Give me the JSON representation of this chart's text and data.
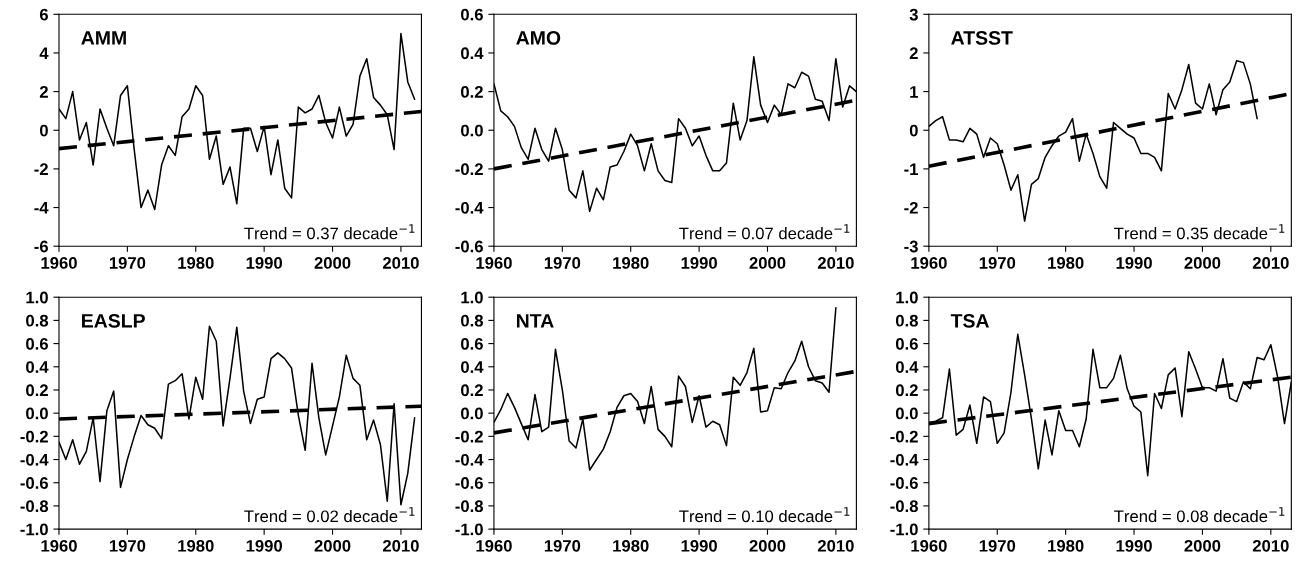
{
  "chart_data": [
    {
      "type": "line",
      "title": "AMM",
      "xlim": [
        1960,
        2013
      ],
      "xticks": [
        1960,
        1970,
        1980,
        1990,
        2000,
        2010
      ],
      "ylim": [
        -6,
        6
      ],
      "yticks": [
        6,
        4,
        2,
        0,
        {
          "value": -2,
          "label": "-2"
        },
        {
          "value": -4,
          "label": "-4"
        },
        {
          "value": -6,
          "label": "-6"
        }
      ],
      "annotations": [
        "Trend = 0.37 decade$^{−1}$"
      ],
      "series": [
        {
          "color": "#000000",
          "x": [
            1960,
            1961,
            1962,
            1963,
            1964,
            1965,
            1966,
            1967,
            1968,
            1969,
            1970,
            1971,
            1972,
            1973,
            1974,
            1975,
            1976,
            1977,
            1978,
            1979,
            1980,
            1981,
            1982,
            1983,
            1984,
            1985,
            1986,
            1987,
            1988,
            1989,
            1990,
            1991,
            1992,
            1993,
            1994,
            1995,
            1996,
            1997,
            1998,
            1999,
            2000,
            2001,
            2002,
            2003,
            2004,
            2005,
            2006,
            2007,
            2008,
            2009,
            2010,
            2011,
            2012
          ],
          "values": [
            1.1,
            0.6,
            2.0,
            -0.5,
            0.4,
            -1.8,
            1.1,
            0.1,
            -0.8,
            1.8,
            2.3,
            -1.0,
            -4.0,
            -3.1,
            -4.1,
            -1.8,
            -0.8,
            -1.3,
            0.7,
            1.1,
            2.3,
            1.8,
            -1.5,
            -0.3,
            -2.8,
            -1.9,
            -3.8,
            0.1,
            0.1,
            -1.1,
            0.2,
            -2.3,
            -0.5,
            -3.0,
            -3.5,
            1.2,
            0.9,
            1.1,
            1.8,
            0.4,
            -0.4,
            1.2,
            -0.3,
            0.3,
            2.8,
            3.7,
            1.7,
            1.3,
            0.8,
            -1.0,
            5.0,
            2.5,
            1.6
          ]
        },
        {
          "color": "#000000",
          "line_style": "dashed",
          "x": [
            1960,
            2013
          ],
          "values": [
            -0.95,
            0.97
          ]
        }
      ]
    },
    {
      "type": "line",
      "title": "AMO",
      "xlim": [
        1960,
        2013
      ],
      "xticks": [
        1960,
        1970,
        1980,
        1990,
        2000,
        2010
      ],
      "ylim": [
        -0.6,
        0.6
      ],
      "yticks": [
        0.6,
        0.4,
        0.2,
        {
          "value": 0,
          "label": "0.0"
        },
        {
          "value": -0.2,
          "label": "-0.2"
        },
        {
          "value": -0.4,
          "label": "-0.4"
        },
        {
          "value": -0.6,
          "label": "-0.6"
        }
      ],
      "annotations": [
        "Trend = 0.07 decade$^{−1}$"
      ],
      "series": [
        {
          "color": "#000000",
          "x": [
            1960,
            1961,
            1962,
            1963,
            1964,
            1965,
            1966,
            1967,
            1968,
            1969,
            1970,
            1971,
            1972,
            1973,
            1974,
            1975,
            1976,
            1977,
            1978,
            1979,
            1980,
            1981,
            1982,
            1983,
            1984,
            1985,
            1986,
            1987,
            1988,
            1989,
            1990,
            1991,
            1992,
            1993,
            1994,
            1995,
            1996,
            1997,
            1998,
            1999,
            2000,
            2001,
            2002,
            2003,
            2004,
            2005,
            2006,
            2007,
            2008,
            2009,
            2010,
            2011,
            2012,
            2013
          ],
          "values": [
            0.24,
            0.1,
            0.07,
            0.02,
            -0.09,
            -0.15,
            0.01,
            -0.1,
            -0.16,
            0.01,
            -0.1,
            -0.31,
            -0.35,
            -0.21,
            -0.42,
            -0.3,
            -0.36,
            -0.19,
            -0.18,
            -0.11,
            -0.02,
            -0.08,
            -0.21,
            -0.07,
            -0.21,
            -0.26,
            -0.27,
            0.06,
            0.01,
            -0.08,
            -0.03,
            -0.13,
            -0.21,
            -0.21,
            -0.17,
            0.14,
            -0.05,
            0.05,
            0.38,
            0.13,
            0.04,
            0.13,
            0.08,
            0.24,
            0.22,
            0.3,
            0.28,
            0.16,
            0.15,
            0.05,
            0.37,
            0.12,
            0.23,
            0.2
          ]
        },
        {
          "color": "#000000",
          "line_style": "dashed",
          "x": [
            1960,
            2013
          ],
          "values": [
            -0.2,
            0.155
          ]
        }
      ]
    },
    {
      "type": "line",
      "title": "ATSST",
      "xlim": [
        1960,
        2013
      ],
      "xticks": [
        1960,
        1970,
        1980,
        1990,
        2000,
        2010
      ],
      "ylim": [
        -3,
        3
      ],
      "yticks": [
        3,
        2,
        1,
        0,
        {
          "value": -1,
          "label": "-1"
        },
        {
          "value": -2,
          "label": "-2"
        },
        {
          "value": -3,
          "label": "-3"
        }
      ],
      "annotations": [
        "Trend = 0.35 decade$^{−1}$"
      ],
      "series": [
        {
          "color": "#000000",
          "x": [
            1960,
            1961,
            1962,
            1963,
            1964,
            1965,
            1966,
            1967,
            1968,
            1969,
            1970,
            1971,
            1972,
            1973,
            1974,
            1975,
            1976,
            1977,
            1978,
            1979,
            1980,
            1981,
            1982,
            1983,
            1984,
            1985,
            1986,
            1987,
            1988,
            1989,
            1990,
            1991,
            1992,
            1993,
            1994,
            1995,
            1996,
            1997,
            1998,
            1999,
            2000,
            2001,
            2002,
            2003,
            2004,
            2005,
            2006,
            2007,
            2008
          ],
          "values": [
            0.1,
            0.25,
            0.35,
            -0.25,
            -0.25,
            -0.3,
            0.05,
            -0.1,
            -0.7,
            -0.2,
            -0.35,
            -0.9,
            -1.55,
            -1.15,
            -2.35,
            -1.4,
            -1.25,
            -0.7,
            -0.4,
            -0.15,
            -0.05,
            0.3,
            -0.8,
            -0.1,
            -0.6,
            -1.2,
            -1.5,
            0.2,
            0.05,
            -0.1,
            -0.2,
            -0.6,
            -0.6,
            -0.7,
            -1.05,
            0.95,
            0.55,
            1.05,
            1.7,
            0.7,
            0.55,
            1.2,
            0.4,
            1.05,
            1.25,
            1.8,
            1.75,
            1.2,
            0.3
          ]
        },
        {
          "color": "#000000",
          "line_style": "dashed",
          "x": [
            1960,
            2013
          ],
          "values": [
            -0.93,
            0.95
          ]
        }
      ]
    },
    {
      "type": "line",
      "title": "EASLP",
      "xlim": [
        1960,
        2013
      ],
      "xticks": [
        1960,
        1970,
        1980,
        1990,
        2000,
        2010
      ],
      "ylim": [
        -1.0,
        1.0
      ],
      "yticks": [
        {
          "value": 1,
          "label": "1.0"
        },
        0.8,
        0.6,
        0.4,
        0.2,
        {
          "value": 0,
          "label": "0.0"
        },
        {
          "value": -0.2,
          "label": "-0.2"
        },
        {
          "value": -0.4,
          "label": "-0.4"
        },
        {
          "value": -0.6,
          "label": "-0.6"
        },
        {
          "value": -0.8,
          "label": "-0.8"
        },
        {
          "value": -1,
          "label": "-1.0"
        }
      ],
      "annotations": [
        "Trend = 0.02 decade$^{−1}$"
      ],
      "series": [
        {
          "color": "#000000",
          "x": [
            1960,
            1961,
            1962,
            1963,
            1964,
            1965,
            1966,
            1967,
            1968,
            1969,
            1970,
            1971,
            1972,
            1973,
            1974,
            1975,
            1976,
            1977,
            1978,
            1979,
            1980,
            1981,
            1982,
            1983,
            1984,
            1985,
            1986,
            1987,
            1988,
            1989,
            1990,
            1991,
            1992,
            1993,
            1994,
            1995,
            1996,
            1997,
            1998,
            1999,
            2000,
            2001,
            2002,
            2003,
            2004,
            2005,
            2006,
            2007,
            2008,
            2009,
            2010,
            2011,
            2012
          ],
          "values": [
            -0.25,
            -0.4,
            -0.23,
            -0.44,
            -0.33,
            -0.04,
            -0.59,
            0.02,
            0.19,
            -0.64,
            -0.4,
            -0.2,
            -0.02,
            -0.1,
            -0.13,
            -0.22,
            0.25,
            0.28,
            0.34,
            -0.05,
            0.31,
            0.12,
            0.75,
            0.62,
            -0.11,
            0.3,
            0.74,
            0.19,
            -0.09,
            0.12,
            0.14,
            0.47,
            0.52,
            0.47,
            0.39,
            -0.02,
            -0.32,
            0.43,
            -0.04,
            -0.36,
            -0.11,
            0.14,
            0.5,
            0.3,
            0.24,
            -0.23,
            -0.06,
            -0.27,
            -0.76,
            0.08,
            -0.79,
            -0.52,
            -0.04
          ]
        },
        {
          "color": "#000000",
          "line_style": "dashed",
          "x": [
            1960,
            2013
          ],
          "values": [
            -0.05,
            0.06
          ]
        }
      ]
    },
    {
      "type": "line",
      "title": "NTA",
      "xlim": [
        1960,
        2013
      ],
      "xticks": [
        1960,
        1970,
        1980,
        1990,
        2000,
        2010
      ],
      "ylim": [
        -1.0,
        1.0
      ],
      "yticks": [
        {
          "value": 1,
          "label": "1.0"
        },
        0.8,
        0.6,
        0.4,
        0.2,
        {
          "value": 0,
          "label": "0.0"
        },
        {
          "value": -0.2,
          "label": "-0.2"
        },
        {
          "value": -0.4,
          "label": "-0.4"
        },
        {
          "value": -0.6,
          "label": "-0.6"
        },
        {
          "value": -0.8,
          "label": "-0.8"
        },
        {
          "value": -1,
          "label": "-1.0"
        }
      ],
      "annotations": [
        "Trend = 0.10 decade$^{−1}$"
      ],
      "series": [
        {
          "color": "#000000",
          "x": [
            1960,
            1961,
            1962,
            1963,
            1964,
            1965,
            1966,
            1967,
            1968,
            1969,
            1970,
            1971,
            1972,
            1973,
            1974,
            1975,
            1976,
            1977,
            1978,
            1979,
            1980,
            1981,
            1982,
            1983,
            1984,
            1985,
            1986,
            1987,
            1988,
            1989,
            1990,
            1991,
            1992,
            1993,
            1994,
            1995,
            1996,
            1997,
            1998,
            1999,
            2000,
            2001,
            2002,
            2003,
            2004,
            2005,
            2006,
            2007,
            2008,
            2009,
            2010
          ],
          "values": [
            -0.08,
            0.03,
            0.17,
            0.05,
            -0.09,
            -0.23,
            0.16,
            -0.16,
            -0.12,
            0.55,
            0.2,
            -0.24,
            -0.3,
            -0.05,
            -0.49,
            -0.4,
            -0.31,
            -0.16,
            0.05,
            0.15,
            0.17,
            0.1,
            -0.09,
            0.23,
            -0.14,
            -0.2,
            -0.29,
            0.32,
            0.23,
            -0.08,
            0.15,
            -0.12,
            -0.07,
            -0.1,
            -0.28,
            0.31,
            0.24,
            0.35,
            0.56,
            0.01,
            0.02,
            0.22,
            0.21,
            0.35,
            0.45,
            0.62,
            0.4,
            0.28,
            0.26,
            0.18,
            0.91
          ]
        },
        {
          "color": "#000000",
          "line_style": "dashed",
          "x": [
            1960,
            2013
          ],
          "values": [
            -0.17,
            0.36
          ]
        }
      ]
    },
    {
      "type": "line",
      "title": "TSA",
      "xlim": [
        1960,
        2013
      ],
      "xticks": [
        1960,
        1970,
        1980,
        1990,
        2000,
        2010
      ],
      "ylim": [
        -1.0,
        1.0
      ],
      "yticks": [
        {
          "value": 1,
          "label": "1.0"
        },
        0.8,
        0.6,
        0.4,
        0.2,
        {
          "value": 0,
          "label": "0.0"
        },
        {
          "value": -0.2,
          "label": "-0.2"
        },
        {
          "value": -0.4,
          "label": "-0.4"
        },
        {
          "value": -0.6,
          "label": "-0.6"
        },
        {
          "value": -0.8,
          "label": "-0.8"
        },
        {
          "value": -1,
          "label": "-1.0"
        }
      ],
      "annotations": [
        "Trend = 0.08 decade$^{−1}$"
      ],
      "series": [
        {
          "color": "#000000",
          "x": [
            1960,
            1961,
            1962,
            1963,
            1964,
            1965,
            1966,
            1967,
            1968,
            1969,
            1970,
            1971,
            1972,
            1973,
            1974,
            1975,
            1976,
            1977,
            1978,
            1979,
            1980,
            1981,
            1982,
            1983,
            1984,
            1985,
            1986,
            1987,
            1988,
            1989,
            1990,
            1991,
            1992,
            1993,
            1994,
            1995,
            1996,
            1997,
            1998,
            1999,
            2000,
            2001,
            2002,
            2003,
            2004,
            2005,
            2006,
            2007,
            2008,
            2009,
            2010,
            2011,
            2012,
            2013
          ],
          "values": [
            -0.08,
            -0.07,
            -0.04,
            0.38,
            -0.19,
            -0.14,
            0.07,
            -0.26,
            0.14,
            0.1,
            -0.26,
            -0.17,
            0.18,
            0.68,
            0.33,
            -0.05,
            -0.48,
            -0.06,
            -0.36,
            0.02,
            -0.15,
            -0.15,
            -0.29,
            -0.05,
            0.55,
            0.22,
            0.22,
            0.3,
            0.5,
            0.21,
            0.06,
            0.01,
            -0.54,
            0.17,
            0.04,
            0.33,
            0.39,
            -0.03,
            0.53,
            0.38,
            0.22,
            0.22,
            0.19,
            0.47,
            0.13,
            0.1,
            0.27,
            0.21,
            0.48,
            0.46,
            0.59,
            0.31,
            -0.09,
            0.27
          ]
        },
        {
          "color": "#000000",
          "line_style": "dashed",
          "x": [
            1960,
            2013
          ],
          "values": [
            -0.09,
            0.31
          ]
        }
      ]
    }
  ]
}
